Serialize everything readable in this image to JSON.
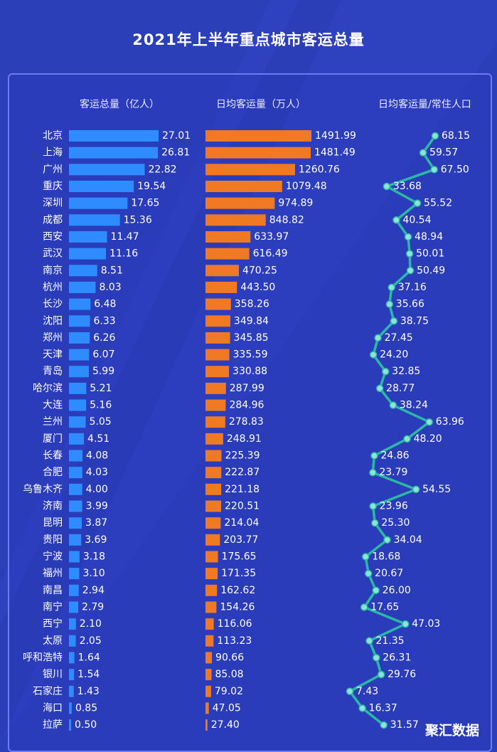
{
  "title": "2021年上半年重点城市客运总量",
  "headers": {
    "total": "客运总量（亿人）",
    "daily": "日均客运量（万人）",
    "ratio": "日均客运量/常住人口"
  },
  "brand": "聚汇数据",
  "colors": {
    "background": "#2b3fb8",
    "blue_bar": "#2f8cff",
    "orange_bar": "#f07a24",
    "line": "#2bb8a6",
    "dot": "#8fe3d6"
  },
  "chart_data": {
    "type": "bar",
    "title": "2021年上半年重点城市客运总量",
    "categories": [
      "北京",
      "上海",
      "广州",
      "重庆",
      "深圳",
      "成都",
      "西安",
      "武汉",
      "南京",
      "杭州",
      "长沙",
      "沈阳",
      "郑州",
      "天津",
      "青岛",
      "哈尔滨",
      "大连",
      "兰州",
      "厦门",
      "长春",
      "合肥",
      "乌鲁木齐",
      "济南",
      "昆明",
      "贵阳",
      "宁波",
      "福州",
      "南昌",
      "南宁",
      "西宁",
      "太原",
      "呼和浩特",
      "银川",
      "石家庄",
      "海口",
      "拉萨"
    ],
    "series": [
      {
        "name": "客运总量（亿人）",
        "type": "bar",
        "values": [
          27.01,
          26.81,
          22.82,
          19.54,
          17.65,
          15.36,
          11.47,
          11.16,
          8.51,
          8.03,
          6.48,
          6.33,
          6.26,
          6.07,
          5.99,
          5.21,
          5.16,
          5.05,
          4.51,
          4.08,
          4.03,
          4.0,
          3.99,
          3.87,
          3.69,
          3.18,
          3.1,
          2.94,
          2.79,
          2.1,
          2.05,
          1.64,
          1.54,
          1.43,
          0.85,
          0.5
        ]
      },
      {
        "name": "日均客运量（万人）",
        "type": "bar",
        "values": [
          1491.99,
          1481.49,
          1260.76,
          1079.48,
          974.89,
          848.82,
          633.97,
          616.49,
          470.25,
          443.5,
          358.26,
          349.84,
          345.85,
          335.59,
          330.88,
          287.99,
          284.96,
          278.83,
          248.91,
          225.39,
          222.87,
          221.18,
          220.51,
          214.04,
          203.77,
          175.65,
          171.35,
          162.62,
          154.26,
          116.06,
          113.23,
          90.66,
          85.08,
          79.02,
          47.05,
          27.4
        ]
      },
      {
        "name": "日均客运量/常住人口",
        "type": "line",
        "values": [
          68.15,
          59.57,
          67.5,
          33.68,
          55.52,
          40.54,
          48.94,
          50.01,
          50.49,
          37.16,
          35.66,
          38.75,
          27.45,
          24.2,
          32.85,
          28.77,
          38.24,
          63.96,
          48.2,
          24.86,
          23.79,
          54.55,
          23.96,
          25.3,
          34.04,
          18.68,
          20.67,
          26.0,
          17.65,
          47.03,
          21.35,
          26.31,
          29.76,
          7.43,
          16.37,
          31.57
        ]
      }
    ],
    "value_labels": {
      "total": [
        "27.01",
        "26.81",
        "22.82",
        "19.54",
        "17.65",
        "15.36",
        "11.47",
        "11.16",
        "8.51",
        "8.03",
        "6.48",
        "6.33",
        "6.26",
        "6.07",
        "5.99",
        "5.21",
        "5.16",
        "5.05",
        "4.51",
        "4.08",
        "4.03",
        "4.00",
        "3.99",
        "3.87",
        "3.69",
        "3.18",
        "3.10",
        "2.94",
        "2.79",
        "2.10",
        "2.05",
        "1.64",
        "1.54",
        "1.43",
        "0.85",
        "0.50"
      ],
      "daily": [
        "1491.99",
        "1481.49",
        "1260.76",
        "1079.48",
        "974.89",
        "848.82",
        "633.97",
        "616.49",
        "470.25",
        "443.50",
        "358.26",
        "349.84",
        "345.85",
        "335.59",
        "330.88",
        "287.99",
        "284.96",
        "278.83",
        "248.91",
        "225.39",
        "222.87",
        "221.18",
        "220.51",
        "214.04",
        "203.77",
        "175.65",
        "171.35",
        "162.62",
        "154.26",
        "116.06",
        "113.23",
        "90.66",
        "85.08",
        "79.02",
        "47.05",
        "27.40"
      ],
      "ratio": [
        "68.15",
        "59.57",
        "67.50",
        "33.68",
        "55.52",
        "40.54",
        "48.94",
        "50.01",
        "50.49",
        "37.16",
        "35.66",
        "38.75",
        "27.45",
        "24.20",
        "32.85",
        "28.77",
        "38.24",
        "63.96",
        "48.20",
        "24.86",
        "23.79",
        "54.55",
        "23.96",
        "25.30",
        "34.04",
        "18.68",
        "20.67",
        "26.00",
        "17.65",
        "47.03",
        "21.35",
        "26.31",
        "29.76",
        "7.43",
        "16.37",
        "31.57"
      ]
    }
  }
}
